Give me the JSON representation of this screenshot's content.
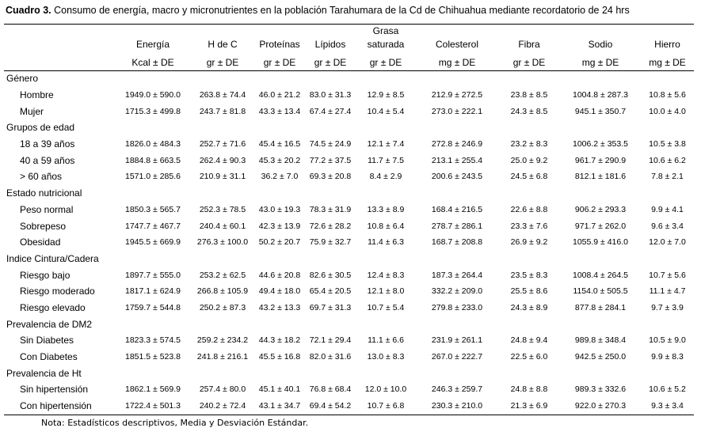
{
  "caption": {
    "label": "Cuadro 3.",
    "text": " Consumo de energía, macro y micronutrientes en la población Tarahumara de la Cd de Chihuahua mediante recordatorio de 24 hrs"
  },
  "columns": [
    {
      "name": "Energía",
      "unit": "Kcal ± DE"
    },
    {
      "name": "H de C",
      "unit": "gr ± DE"
    },
    {
      "name": "Proteínas",
      "unit": "gr ± DE"
    },
    {
      "name": "Lípidos",
      "unit": "gr ± DE"
    },
    {
      "name_line1": "Grasa",
      "name": "saturada",
      "unit": "gr ± DE"
    },
    {
      "name": "Colesterol",
      "unit": "mg ± DE"
    },
    {
      "name": "Fibra",
      "unit": "gr ± DE"
    },
    {
      "name": "Sodio",
      "unit": "mg ± DE"
    },
    {
      "name": "Hierro",
      "unit": "mg ± DE"
    }
  ],
  "groups": [
    {
      "title": "Género",
      "rows": [
        {
          "label": "Hombre",
          "values": [
            "1949.0 ± 590.0",
            "263.8 ± 74.4",
            "46.0 ± 21.2",
            "83.0 ± 31.3",
            "12.9 ± 8.5",
            "212.9 ± 272.5",
            "23.8 ± 8.5",
            "1004.8 ± 287.3",
            "10.8 ± 5.6"
          ]
        },
        {
          "label": "Mujer",
          "values": [
            "1715.3 ± 499.8",
            "243.7 ± 81.8",
            "43.3 ± 13.4",
            "67.4 ± 27.4",
            "10.4 ± 5.4",
            "273.0 ± 222.1",
            "24.3 ± 8.5",
            "945.1 ± 350.7",
            "10.0 ± 4.0"
          ]
        }
      ]
    },
    {
      "title": "Grupos de edad",
      "rows": [
        {
          "label": "18 a 39 años",
          "values": [
            "1826.0 ± 484.3",
            "252.7 ± 71.6",
            "45.4 ± 16.5",
            "74.5 ± 24.9",
            "12.1 ± 7.4",
            "272.8 ± 246.9",
            "23.2 ± 8.3",
            "1006.2 ± 353.5",
            "10.5 ± 3.8"
          ]
        },
        {
          "label": "40 a 59 años",
          "values": [
            "1884.8 ± 663.5",
            "262.4 ± 90.3",
            "45.3 ± 20.2",
            "77.2 ± 37.5",
            "11.7 ± 7.5",
            "213.1 ± 255.4",
            "25.0 ± 9.2",
            "961.7 ± 290.9",
            "10.6 ± 6.2"
          ]
        },
        {
          "label": "> 60 años",
          "values": [
            "1571.0 ± 285.6",
            "210.9 ± 31.1",
            "36.2 ± 7.0",
            "69.3 ± 20.8",
            "8.4 ± 2.9",
            "200.6 ± 243.5",
            "24.5 ± 6.8",
            "812.1 ± 181.6",
            "7.8 ± 2.1"
          ]
        }
      ]
    },
    {
      "title": "Estado nutricional",
      "rows": [
        {
          "label": "Peso normal",
          "values": [
            "1850.3 ± 565.7",
            "252.3 ± 78.5",
            "43.0 ± 19.3",
            "78.3 ± 31.9",
            "13.3 ± 8.9",
            "168.4 ± 216.5",
            "22.6 ± 8.8",
            "906.2 ± 293.3",
            "9.9 ± 4.1"
          ]
        },
        {
          "label": "Sobrepeso",
          "values": [
            "1747.7 ± 467.7",
            "240.4 ± 60.1",
            "42.3 ± 13.9",
            "72.6 ± 28.2",
            "10.8 ± 6.4",
            "278.7 ± 286.1",
            "23.3 ± 7.6",
            "971.7 ± 262.0",
            "9.6 ± 3.4"
          ]
        },
        {
          "label": "Obesidad",
          "values": [
            "1945.5 ± 669.9",
            "276.3 ± 100.0",
            "50.2 ± 20.7",
            "75.9 ± 32.7",
            "11.4 ± 6.3",
            "168.7 ± 208.8",
            "26.9 ± 9.2",
            "1055.9 ± 416.0",
            "12.0 ± 7.0"
          ]
        }
      ]
    },
    {
      "title": "Indice Cintura/Cadera",
      "rows": [
        {
          "label": "Riesgo bajo",
          "values": [
            "1897.7 ± 555.0",
            "253.2 ± 62.5",
            "44.6 ± 20.8",
            "82.6 ± 30.5",
            "12.4 ± 8.3",
            "187.3 ± 264.4",
            "23.5 ± 8.3",
            "1008.4 ± 264.5",
            "10.7 ± 5.6"
          ]
        },
        {
          "label": "Riesgo moderado",
          "values": [
            "1817.1 ± 624.9",
            "266.8 ± 105.9",
            "49.4 ± 18.0",
            "65.4 ± 20.5",
            "12.1 ± 8.0",
            "332.2 ± 209.0",
            "25.5 ± 8.6",
            "1154.0 ± 505.5",
            "11.1 ± 4.7"
          ]
        },
        {
          "label": "Riesgo elevado",
          "values": [
            "1759.7 ± 544.8",
            "250.2 ± 87.3",
            "43.2 ± 13.3",
            "69.7 ± 31.3",
            "10.7 ± 5.4",
            "279.8 ± 233.0",
            "24.3 ± 8.9",
            "877.8 ± 284.1",
            "9.7 ± 3.9"
          ]
        }
      ]
    },
    {
      "title": "Prevalencia de DM2",
      "rows": [
        {
          "label": "Sin Diabetes",
          "values": [
            "1823.3 ± 574.5",
            "259.2 ± 234.2",
            "44.3 ± 18.2",
            "72.1 ± 29.4",
            "11.1 ± 6.6",
            "231.9 ± 261.1",
            "24.8 ± 9.4",
            "989.8 ± 348.4",
            "10.5 ± 9.0"
          ]
        },
        {
          "label": "Con Diabetes",
          "values": [
            "1851.5 ± 523.8",
            "241.8 ± 216.1",
            "45.5 ± 16.8",
            "82.0 ± 31.6",
            "13.0 ± 8.3",
            "267.0 ± 222.7",
            "22.5 ± 6.0",
            "942.5 ± 250.0",
            "9.9 ± 8.3"
          ]
        }
      ]
    },
    {
      "title": "Prevalencia de Ht",
      "rows": [
        {
          "label": "Sin hipertensión",
          "values": [
            "1862.1 ± 569.9",
            "257.4 ± 80.0",
            "45.1 ± 40.1",
            "76.8 ± 68.4",
            "12.0 ± 10.0",
            "246.3 ± 259.7",
            "24.8 ± 8.8",
            "989.3 ± 332.6",
            "10.6 ± 5.2"
          ]
        },
        {
          "label": "Con hipertensión",
          "values": [
            "1722.4 ± 501.3",
            "240.2 ± 72.4",
            "43.1 ± 34.7",
            "69.4 ± 54.2",
            "10.7 ± 6.8",
            "230.3 ± 210.0",
            "21.3 ± 6.9",
            "922.0 ± 270.3",
            "9.3 ± 3.4"
          ]
        }
      ]
    }
  ],
  "note": "Nota: Estadísticos descriptivos, Media y Desviación Estándar."
}
